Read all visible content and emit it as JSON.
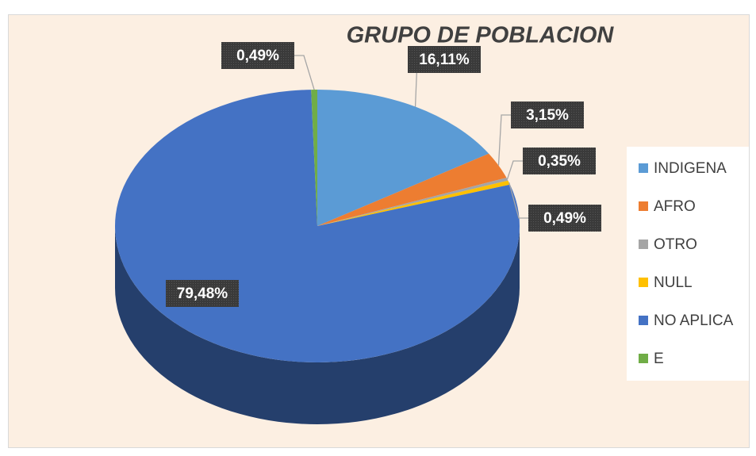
{
  "chart_data": {
    "type": "pie",
    "title": "GRUPO DE POBLACION",
    "categories": [
      "INDIGENA",
      "AFRO",
      "OTRO",
      "NULL",
      "NO APLICA",
      "E"
    ],
    "values": [
      16.11,
      3.15,
      0.35,
      0.49,
      79.48,
      0.49
    ],
    "value_labels": [
      "16,11%",
      "3,15%",
      "0,35%",
      "0,49%",
      "79,48%",
      "0,49%"
    ],
    "colors": [
      "#5b9bd5",
      "#ed7d31",
      "#a5a5a5",
      "#ffc000",
      "#4472c4",
      "#70ad47"
    ],
    "legend": "right"
  }
}
